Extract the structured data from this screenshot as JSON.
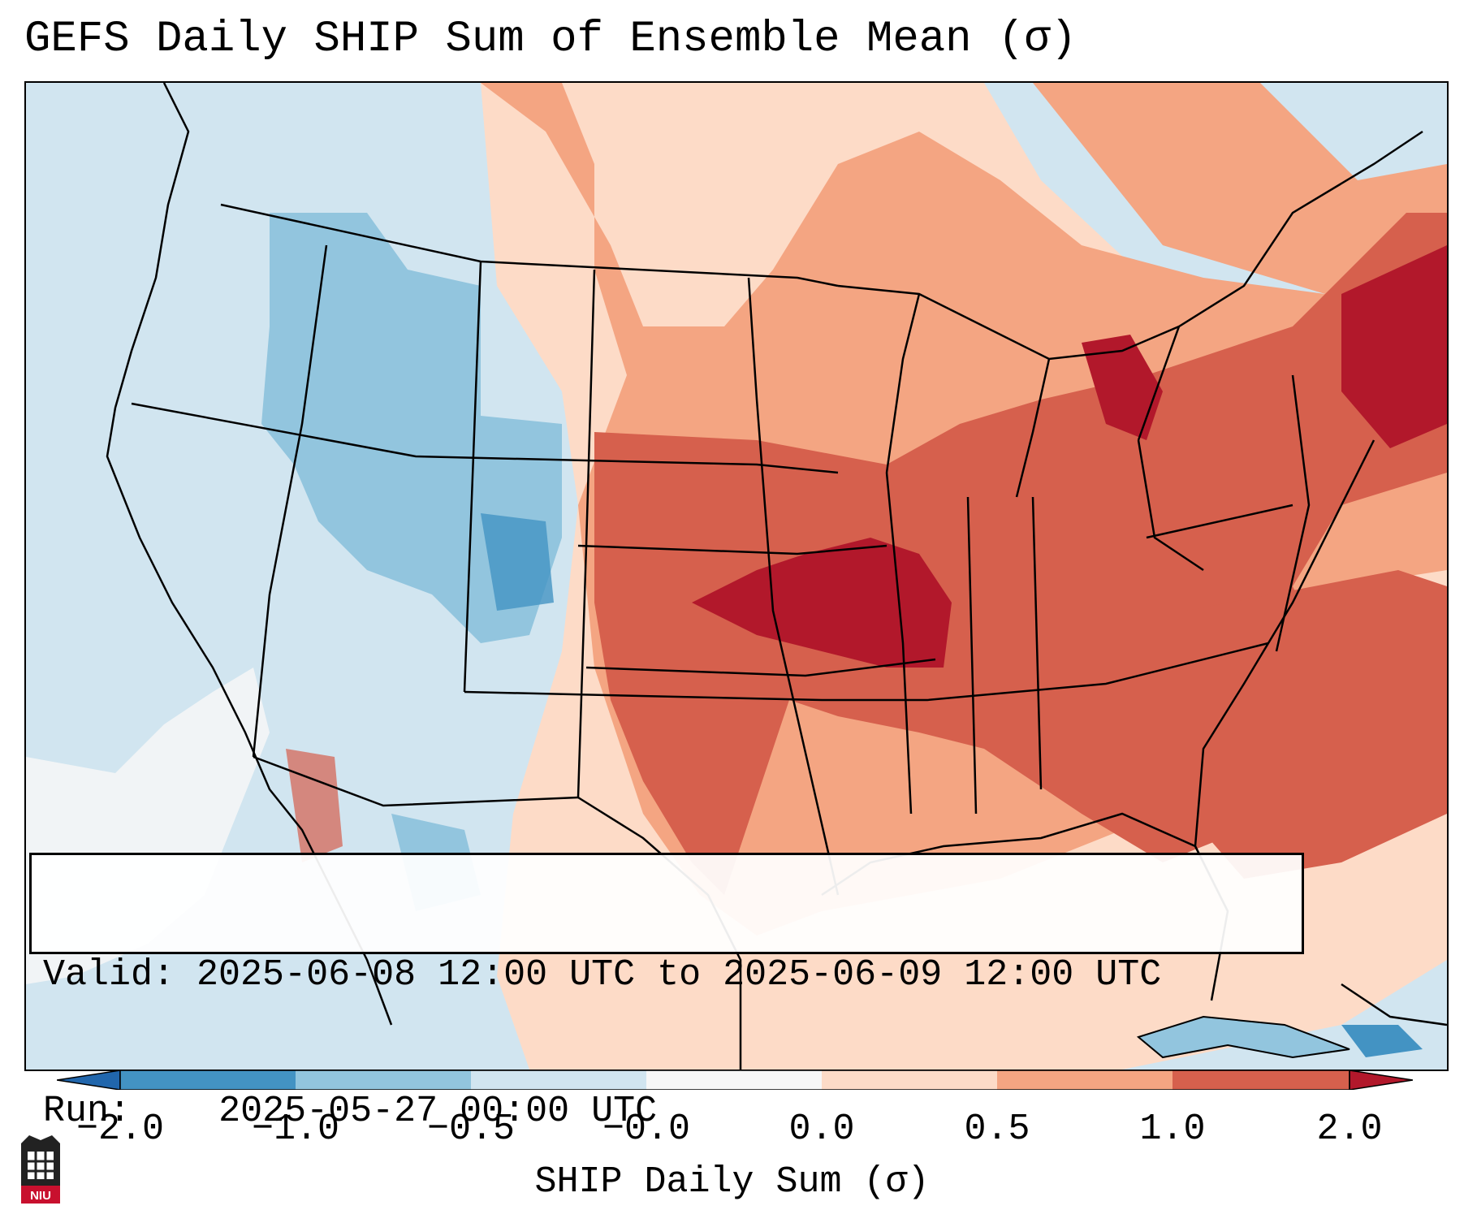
{
  "title": "GEFS Daily SHIP Sum of Ensemble Mean (σ)",
  "info": {
    "valid_label": "Valid:",
    "valid_value": "2025-06-08 12:00 UTC to 2025-06-09 12:00 UTC",
    "run_label": "Run:",
    "run_value": "2025-05-27 00:00 UTC"
  },
  "colorbar": {
    "label": "SHIP Daily Sum (σ)",
    "ticks": [
      "−2.0",
      "−1.0",
      "−0.5",
      "−0.0",
      "0.0",
      "0.5",
      "1.0",
      "2.0"
    ],
    "colors": [
      "#4393c3",
      "#92c5de",
      "#d1e5f0",
      "#f7f7f7",
      "#fddbc7",
      "#f4a582",
      "#d6604d",
      "#b2182b"
    ]
  },
  "logo": {
    "text": "NIU"
  }
}
